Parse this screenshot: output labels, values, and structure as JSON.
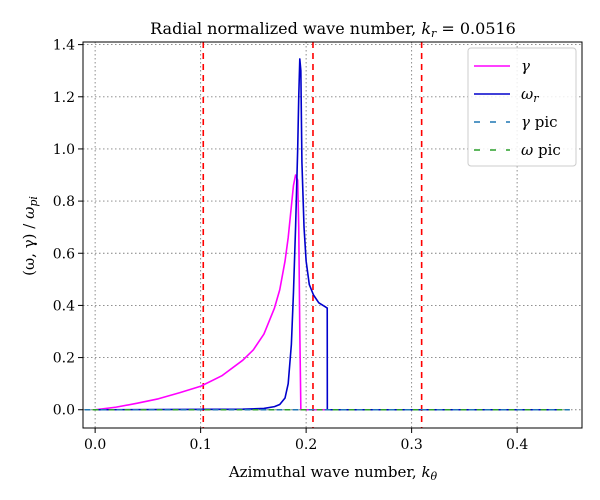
{
  "chart_data": {
    "type": "line",
    "title_prefix": "Radial normalized wave number, ",
    "title_symbol": "k",
    "title_subscript": "r",
    "title_suffix": " = 0.0516",
    "xlabel_prefix": "Azimuthal wave number, ",
    "xlabel_symbol": "k",
    "xlabel_subscript": "θ",
    "ylabel_prefix": "(ω, γ) / ",
    "ylabel_symbol": "ω",
    "ylabel_subscript": "pi",
    "xlim": [
      -0.0115,
      0.4615
    ],
    "ylim": [
      -0.07,
      1.41
    ],
    "xticks": [
      0.0,
      0.1,
      0.2,
      0.3,
      0.4
    ],
    "xtick_labels": [
      "0.0",
      "0.1",
      "0.2",
      "0.3",
      "0.4"
    ],
    "yticks": [
      0.0,
      0.2,
      0.4,
      0.6,
      0.8,
      1.0,
      1.2,
      1.4
    ],
    "ytick_labels": [
      "0.0",
      "0.2",
      "0.4",
      "0.6",
      "0.8",
      "1.0",
      "1.2",
      "1.4"
    ],
    "grid": true,
    "legend_position": "top-right",
    "vlines": {
      "x": [
        0.1025,
        0.2065,
        0.3095
      ],
      "color": "#ff0000",
      "style": "dashed"
    },
    "series": [
      {
        "name": "γ",
        "name_symbol": "γ",
        "name_subscript": "",
        "color": "#ff00ff",
        "style": "solid",
        "x": [
          0.0,
          0.02,
          0.04,
          0.06,
          0.08,
          0.1,
          0.12,
          0.14,
          0.15,
          0.16,
          0.17,
          0.175,
          0.18,
          0.183,
          0.186,
          0.188,
          0.19,
          0.192,
          0.193,
          0.194,
          0.195,
          0.22,
          0.44
        ],
        "y": [
          0.0,
          0.01,
          0.025,
          0.042,
          0.065,
          0.09,
          0.13,
          0.19,
          0.23,
          0.29,
          0.39,
          0.46,
          0.57,
          0.66,
          0.78,
          0.86,
          0.9,
          0.88,
          0.7,
          0.3,
          0.0,
          0.0,
          0.0
        ]
      },
      {
        "name": "ωr",
        "name_symbol": "ω",
        "name_subscript": "r",
        "color": "#0000cc",
        "style": "solid",
        "x": [
          0.0,
          0.14,
          0.16,
          0.17,
          0.175,
          0.18,
          0.183,
          0.186,
          0.188,
          0.19,
          0.192,
          0.193,
          0.194,
          0.195,
          0.196,
          0.198,
          0.2,
          0.203,
          0.207,
          0.212,
          0.218,
          0.22,
          0.2201,
          0.44
        ],
        "y": [
          0.0,
          0.002,
          0.005,
          0.012,
          0.02,
          0.045,
          0.1,
          0.25,
          0.45,
          0.7,
          1.0,
          1.2,
          1.345,
          1.3,
          0.95,
          0.7,
          0.57,
          0.48,
          0.44,
          0.41,
          0.395,
          0.39,
          0.0,
          0.0
        ]
      },
      {
        "name": "γ pic",
        "name_symbol": "γ",
        "name_subscript": "",
        "name_suffix": " pic",
        "color": "#1f77b4",
        "style": "dashed",
        "x": [
          -0.01,
          0.45
        ],
        "y": [
          0.0,
          0.0
        ]
      },
      {
        "name": "ω pic",
        "name_symbol": "ω",
        "name_subscript": "",
        "name_suffix": " pic",
        "color": "#2ca02c",
        "style": "dashed",
        "x": [
          -0.01,
          0.45
        ],
        "y": [
          0.0,
          0.0
        ]
      }
    ]
  }
}
